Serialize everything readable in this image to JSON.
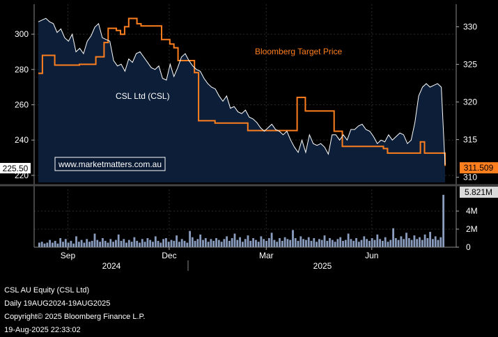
{
  "chart_data": {
    "type": "line",
    "ticker": "CSL AU Equity (CSL Ltd)",
    "frequency": "Daily 19AUG2024-19AUG2025",
    "copyright": "Copyright© 2025 Bloomberg Finance L.P.",
    "timestamp": "19-Aug-2025 22:33:02",
    "watermark": "www.marketmatters.com.au",
    "price_axis": {
      "side": "left",
      "ticks": [
        "220",
        "240",
        "260",
        "280",
        "300"
      ],
      "ylim": [
        216,
        317
      ]
    },
    "target_axis": {
      "side": "right",
      "ticks": [
        "310",
        "315",
        "320",
        "325",
        "330"
      ],
      "ylim": [
        309.3,
        333.0
      ]
    },
    "volume_axis": {
      "side": "right",
      "ticks": [
        "0",
        "2M",
        "4M"
      ],
      "ylim": [
        0,
        6.4
      ]
    },
    "x_tick_labels": [
      "Sep",
      "Dec",
      "Mar",
      "Jun"
    ],
    "x_year_labels": [
      "2024",
      "2025"
    ],
    "series": [
      {
        "name": "CSL Ltd (CSL)",
        "axis": "left",
        "color": "#ffffff",
        "fill": "#0d1f38",
        "last_value_label": "225.50",
        "values": [
          307,
          308,
          309,
          307,
          306,
          301,
          303,
          298,
          296,
          300,
          290,
          292,
          289,
          296,
          299,
          304,
          306,
          298,
          297,
          296,
          285,
          282,
          283,
          279,
          286,
          284,
          289,
          290,
          287,
          284,
          281,
          280,
          282,
          275,
          274,
          283,
          276,
          281,
          287,
          289,
          285,
          282,
          280,
          279,
          275,
          272,
          270,
          269,
          265,
          262,
          265,
          258,
          259,
          256,
          255,
          257,
          253,
          252,
          250,
          247,
          245,
          247,
          249,
          246,
          245,
          243,
          245,
          240,
          236,
          233,
          240,
          233,
          243,
          238,
          237,
          238,
          236,
          232,
          243,
          243,
          240,
          243,
          240,
          246,
          246,
          248,
          249,
          246,
          245,
          242,
          238,
          240,
          239,
          243,
          240,
          242,
          244,
          243,
          238,
          240,
          250,
          265,
          270,
          272,
          270,
          271,
          272,
          270,
          226
        ]
      },
      {
        "name": "Bloomberg Target Price",
        "axis": "right",
        "color": "#ff7f1e",
        "last_value_label": "311.509",
        "values": [
          323.8,
          326.2,
          326.2,
          326.2,
          324.9,
          324.9,
          324.9,
          324.9,
          324.9,
          324.9,
          325.0,
          325.0,
          325.0,
          325.0,
          326.0,
          326.0,
          327.9,
          329.8,
          329.8,
          329.5,
          329.0,
          330.0,
          331.1,
          331.1,
          330.4,
          330.1,
          330.1,
          330.1,
          330.1,
          330.1,
          328.3,
          328.3,
          327.7,
          327.2,
          325.5,
          325.5,
          325.5,
          325.5,
          323.9,
          317.5,
          317.5,
          317.5,
          317.5,
          317.2,
          317.2,
          317.2,
          317.2,
          317.2,
          317.2,
          317.2,
          317.2,
          316.2,
          316.2,
          316.2,
          316.2,
          316.2,
          316.2,
          316.2,
          316.2,
          316.2,
          316.2,
          316.2,
          316.2,
          320.6,
          320.6,
          318.8,
          318.8,
          318.8,
          318.8,
          318.8,
          318.8,
          318.8,
          316.1,
          316.1,
          314.1,
          314.1,
          314.1,
          314.1,
          314.1,
          314.1,
          314.1,
          314.1,
          314.1,
          314.1,
          313.8,
          313.2,
          313.2,
          313.2,
          313.2,
          313.2,
          313.2,
          313.2,
          313.2,
          314.7,
          313.2,
          313.2,
          313.2,
          313.2,
          313.2,
          311.5
        ]
      },
      {
        "name": "Volume",
        "axis": "volume",
        "type": "bar",
        "color": "#8a9dbf",
        "last_value_label": "5.821M",
        "values": [
          0.5,
          0.6,
          0.4,
          0.5,
          0.8,
          0.5,
          0.7,
          0.4,
          1.0,
          0.6,
          0.9,
          0.5,
          0.7,
          0.4,
          1.2,
          0.6,
          0.8,
          0.5,
          0.9,
          0.6,
          0.7,
          1.5,
          0.8,
          0.6,
          1.0,
          0.7,
          0.5,
          0.9,
          0.6,
          0.8,
          1.4,
          0.7,
          0.9,
          0.5,
          0.8,
          0.6,
          1.1,
          0.7,
          0.5,
          0.9,
          0.6,
          1.0,
          0.8,
          0.6,
          1.2,
          0.7,
          0.5,
          0.9,
          1.0,
          0.6,
          0.8,
          0.7,
          1.3,
          0.6,
          0.9,
          0.7,
          0.5,
          1.8,
          1.1,
          0.7,
          0.9,
          1.4,
          0.8,
          1.0,
          0.6,
          0.9,
          0.7,
          1.0,
          0.8,
          0.6,
          0.9,
          1.2,
          0.7,
          1.0,
          1.5,
          0.8,
          1.1,
          0.6,
          0.9,
          1.3,
          0.7,
          1.0,
          0.8,
          0.6,
          1.2,
          0.9,
          0.7,
          1.0,
          1.6,
          0.8,
          0.6,
          1.0,
          0.7,
          1.1,
          0.9,
          0.8,
          1.9,
          1.0,
          0.7,
          1.2,
          0.9,
          0.8,
          1.1,
          0.7,
          1.0,
          0.6,
          0.9,
          0.8,
          1.3,
          0.7,
          1.0,
          0.8,
          0.6,
          0.9,
          1.1,
          0.7,
          0.8,
          1.5,
          0.9,
          0.7,
          1.0,
          0.6,
          0.8,
          1.2,
          0.9,
          0.7,
          1.0,
          0.8,
          1.4,
          0.9,
          0.7,
          1.1,
          0.6,
          0.8,
          2.1,
          1.0,
          0.8,
          1.2,
          0.9,
          1.6,
          1.0,
          0.8,
          1.3,
          0.9,
          1.1,
          0.8,
          1.4,
          1.0,
          1.7,
          0.9,
          1.2,
          0.8,
          1.1,
          5.8
        ]
      }
    ]
  }
}
